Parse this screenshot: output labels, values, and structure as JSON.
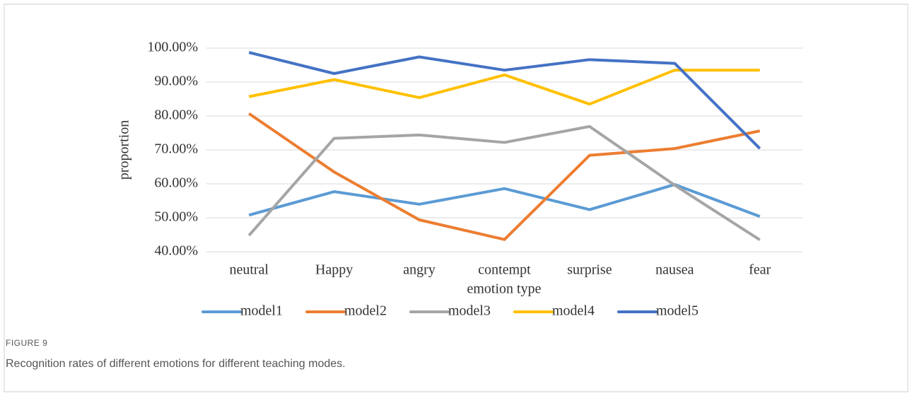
{
  "chart_data": {
    "type": "line",
    "figure_label": "FIGURE 9",
    "caption": "Recognition rates of different emotions for different teaching modes.",
    "xlabel": "emotion type",
    "ylabel": "proportion",
    "categories": [
      "neutral",
      "Happy",
      "angry",
      "contempt",
      "surprise",
      "nausea",
      "fear"
    ],
    "series": [
      {
        "name": "model1",
        "color": "#5b9bd5",
        "values": [
          50.8,
          57.7,
          54.0,
          58.6,
          52.4,
          59.8,
          50.4
        ]
      },
      {
        "name": "model2",
        "color": "#ed7d31",
        "values": [
          80.7,
          63.5,
          49.4,
          43.6,
          68.4,
          70.4,
          75.6
        ]
      },
      {
        "name": "model3",
        "color": "#a5a5a5",
        "values": [
          44.8,
          73.4,
          74.4,
          72.2,
          76.9,
          59.6,
          43.5
        ]
      },
      {
        "name": "model4",
        "color": "#ffc000",
        "values": [
          85.7,
          90.7,
          85.4,
          92.1,
          83.5,
          93.5,
          93.5
        ]
      },
      {
        "name": "model5",
        "color": "#4472c4",
        "values": [
          98.7,
          92.5,
          97.4,
          93.5,
          96.6,
          95.5,
          70.4
        ]
      }
    ],
    "ylim": [
      40,
      100
    ],
    "yticks": [
      {
        "value": 40,
        "label": "40.00%"
      },
      {
        "value": 50,
        "label": "50.00%"
      },
      {
        "value": 60,
        "label": "60.00%"
      },
      {
        "value": 70,
        "label": "70.00%"
      },
      {
        "value": 80,
        "label": "80.00%"
      },
      {
        "value": 90,
        "label": "90.00%"
      },
      {
        "value": 100,
        "label": "100.00%"
      }
    ],
    "grid": true,
    "legend": "bottom"
  }
}
